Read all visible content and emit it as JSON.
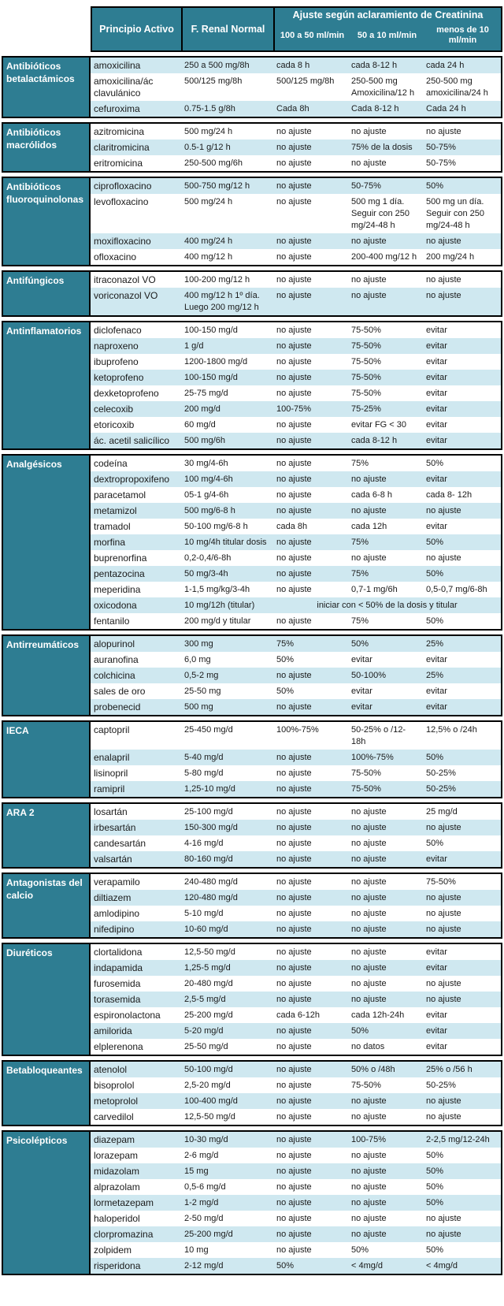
{
  "colors": {
    "teal": "#2E7D92",
    "row_alt": "#CFE8F0",
    "row_white": "#FFFFFF",
    "border": "#000000",
    "text": "#1A1A1A",
    "header_text": "#FFFFFF"
  },
  "header": {
    "col_principio": "Principio Activo",
    "col_frenal": "F. Renal Normal",
    "span_title": "Ajuste según aclaramiento de Creatinina",
    "sub1": "100 a 50 ml/min",
    "sub2": "50 a 10 ml/min",
    "sub3": "menos de 10 ml/min"
  },
  "groups": [
    {
      "label": "Antibióticos betalactámicos",
      "rows": [
        {
          "drug": "amoxicilina",
          "normal": "250 a 500 mg/8h",
          "c1": "cada 8 h",
          "c2": "cada 8-12 h",
          "c3": "cada 24 h",
          "shade": true
        },
        {
          "drug": "amoxicilina/ác clavulánico",
          "normal": "500/125 mg/8h",
          "c1": "500/125 mg/8h",
          "c2": "250-500 mg Amoxicilina/12 h",
          "c3": "250-500 mg amoxicilina/24 h",
          "shade": false
        },
        {
          "drug": "cefuroxima",
          "normal": "0.75-1.5 g/8h",
          "c1": "Cada 8h",
          "c2": "Cada 8-12 h",
          "c3": "Cada 24 h",
          "shade": true
        }
      ]
    },
    {
      "label": "Antibióticos macrólidos",
      "rows": [
        {
          "drug": "azitromicina",
          "normal": "500 mg/24 h",
          "c1": "no ajuste",
          "c2": "no ajuste",
          "c3": "no ajuste",
          "shade": false
        },
        {
          "drug": "claritromicina",
          "normal": "0.5-1 g/12 h",
          "c1": "no ajuste",
          "c2": "75% de la dosis",
          "c3": "50-75%",
          "shade": true
        },
        {
          "drug": "eritromicina",
          "normal": "250-500 mg/6h",
          "c1": "no ajuste",
          "c2": "no ajuste",
          "c3": "50-75%",
          "shade": false
        }
      ]
    },
    {
      "label": "Antibióticos fluoroquinolonas",
      "rows": [
        {
          "drug": "ciprofloxacino",
          "normal": "500-750 mg/12 h",
          "c1": "no ajuste",
          "c2": "50-75%",
          "c3": "50%",
          "shade": true
        },
        {
          "drug": "levofloxacino",
          "normal": "500 mg/24 h",
          "c1": "no ajuste",
          "c2": "500 mg 1 día. Seguir con 250 mg/24-48 h",
          "c3": "500 mg un día. Seguir con 250 mg/24-48 h",
          "shade": false
        },
        {
          "drug": "moxifloxacino",
          "normal": "400 mg/24 h",
          "c1": "no ajuste",
          "c2": "no ajuste",
          "c3": "no ajuste",
          "shade": true
        },
        {
          "drug": "ofloxacino",
          "normal": "400 mg/12 h",
          "c1": "no ajuste",
          "c2": "200-400 mg/12 h",
          "c3": "200 mg/24 h",
          "shade": false
        }
      ]
    },
    {
      "label": "Antifúngicos",
      "rows": [
        {
          "drug": "itraconazol VO",
          "normal": "100-200 mg/12 h",
          "c1": "no ajuste",
          "c2": "no ajuste",
          "c3": "no ajuste",
          "shade": false
        },
        {
          "drug": "voriconazol VO",
          "normal": "400 mg/12 h 1º día. Luego 200 mg/12 h",
          "c1": "no ajuste",
          "c2": "no ajuste",
          "c3": "no ajuste",
          "shade": true
        }
      ]
    },
    {
      "label": "Antinflamatorios",
      "rows": [
        {
          "drug": "diclofenaco",
          "normal": "100-150 mg/d",
          "c1": "no ajuste",
          "c2": "75-50%",
          "c3": "evitar",
          "shade": false
        },
        {
          "drug": "naproxeno",
          "normal": "1 g/d",
          "c1": "no ajuste",
          "c2": "75-50%",
          "c3": "evitar",
          "shade": true
        },
        {
          "drug": "ibuprofeno",
          "normal": "1200-1800 mg/d",
          "c1": "no ajuste",
          "c2": "75-50%",
          "c3": "evitar",
          "shade": false
        },
        {
          "drug": "ketoprofeno",
          "normal": "100-150 mg/d",
          "c1": "no ajuste",
          "c2": "75-50%",
          "c3": "evitar",
          "shade": true
        },
        {
          "drug": "dexketoprofeno",
          "normal": "25-75 mg/d",
          "c1": "no ajuste",
          "c2": "75-50%",
          "c3": "evitar",
          "shade": false
        },
        {
          "drug": "celecoxib",
          "normal": "200 mg/d",
          "c1": "100-75%",
          "c2": "75-25%",
          "c3": "evitar",
          "shade": true
        },
        {
          "drug": "etoricoxib",
          "normal": "60 mg/d",
          "c1": "no ajuste",
          "c2": "evitar FG < 30",
          "c3": "evitar",
          "shade": false
        },
        {
          "drug": "ác. acetil salicílico",
          "normal": "500 mg/6h",
          "c1": "no ajuste",
          "c2": "cada 8-12 h",
          "c3": "evitar",
          "shade": true
        }
      ]
    },
    {
      "label": "Analgésicos",
      "rows": [
        {
          "drug": "codeína",
          "normal": "30 mg/4-6h",
          "c1": "no ajuste",
          "c2": "75%",
          "c3": "50%",
          "shade": false
        },
        {
          "drug": "dextropropoxifeno",
          "normal": "100 mg/4-6h",
          "c1": "no ajuste",
          "c2": "no ajuste",
          "c3": "evitar",
          "shade": true
        },
        {
          "drug": "paracetamol",
          "normal": "05-1 g/4-6h",
          "c1": "no ajuste",
          "c2": "cada 6-8 h",
          "c3": "cada 8- 12h",
          "shade": false
        },
        {
          "drug": "metamizol",
          "normal": "500 mg/6-8 h",
          "c1": "no ajuste",
          "c2": "no ajuste",
          "c3": "no ajuste",
          "shade": true
        },
        {
          "drug": "tramadol",
          "normal": "50-100 mg/6-8 h",
          "c1": "cada 8h",
          "c2": "cada 12h",
          "c3": "evitar",
          "shade": false
        },
        {
          "drug": "morfina",
          "normal": "10 mg/4h titular dosis",
          "c1": "no ajuste",
          "c2": "75%",
          "c3": "50%",
          "shade": true
        },
        {
          "drug": "buprenorfina",
          "normal": "0,2-0,4/6-8h",
          "c1": "no ajuste",
          "c2": "no ajuste",
          "c3": "no ajuste",
          "shade": false
        },
        {
          "drug": "pentazocina",
          "normal": "50 mg/3-4h",
          "c1": "no ajuste",
          "c2": "75%",
          "c3": "50%",
          "shade": true
        },
        {
          "drug": "meperidina",
          "normal": "1-1,5 mg/kg/3-4h",
          "c1": "no ajuste",
          "c2": "0,7-1 mg/6h",
          "c3": "0,5-0,7 mg/6-8h",
          "shade": false
        },
        {
          "drug": "oxicodona",
          "normal": "10 mg/12h (titular)",
          "merged": "iniciar con < 50% de la dosis y titular",
          "shade": true
        },
        {
          "drug": "fentanilo",
          "normal": "200 mg/d y titular",
          "c1": "no ajuste",
          "c2": "75%",
          "c3": "50%",
          "shade": false
        }
      ]
    },
    {
      "label": "Antirreumáticos",
      "rows": [
        {
          "drug": "alopurinol",
          "normal": "300 mg",
          "c1": "75%",
          "c2": "50%",
          "c3": "25%",
          "shade": true
        },
        {
          "drug": "auranofina",
          "normal": "6,0 mg",
          "c1": "50%",
          "c2": "evitar",
          "c3": "evitar",
          "shade": false
        },
        {
          "drug": "colchicina",
          "normal": "0,5-2 mg",
          "c1": "no ajuste",
          "c2": "50-100%",
          "c3": "25%",
          "shade": true
        },
        {
          "drug": "sales de oro",
          "normal": "25-50 mg",
          "c1": "50%",
          "c2": "evitar",
          "c3": "evitar",
          "shade": false
        },
        {
          "drug": "probenecid",
          "normal": "500 mg",
          "c1": "no ajuste",
          "c2": "evitar",
          "c3": "evitar",
          "shade": true
        }
      ]
    },
    {
      "label": "IECA",
      "rows": [
        {
          "drug": "captopril",
          "normal": "25-450 mg/d",
          "c1": "100%-75%",
          "c2": "50-25% o /12-18h",
          "c3": "12,5% o /24h",
          "shade": false
        },
        {
          "drug": "enalapril",
          "normal": "5-40 mg/d",
          "c1": "no ajuste",
          "c2": "100%-75%",
          "c3": "50%",
          "shade": true
        },
        {
          "drug": "lisinopril",
          "normal": "5-80 mg/d",
          "c1": "no ajuste",
          "c2": "75-50%",
          "c3": "50-25%",
          "shade": false
        },
        {
          "drug": "ramipril",
          "normal": "1,25-10 mg/d",
          "c1": "no ajuste",
          "c2": "75-50%",
          "c3": "50-25%",
          "shade": true
        }
      ]
    },
    {
      "label": "ARA 2",
      "rows": [
        {
          "drug": "losartán",
          "normal": "25-100 mg/d",
          "c1": "no ajuste",
          "c2": "no ajuste",
          "c3": "25 mg/d",
          "shade": false
        },
        {
          "drug": "irbesartán",
          "normal": "150-300 mg/d",
          "c1": "no ajuste",
          "c2": "no ajuste",
          "c3": "no ajuste",
          "shade": true
        },
        {
          "drug": "candesartán",
          "normal": "4-16 mg/d",
          "c1": "no ajuste",
          "c2": "no ajuste",
          "c3": "50%",
          "shade": false
        },
        {
          "drug": "valsartán",
          "normal": "80-160 mg/d",
          "c1": "no ajuste",
          "c2": "no ajuste",
          "c3": "evitar",
          "shade": true
        }
      ]
    },
    {
      "label": "Antagonistas del calcio",
      "rows": [
        {
          "drug": "verapamilo",
          "normal": "240-480 mg/d",
          "c1": "no ajuste",
          "c2": "no ajuste",
          "c3": "75-50%",
          "shade": false
        },
        {
          "drug": "diltiazem",
          "normal": "120-480 mg/d",
          "c1": "no ajuste",
          "c2": "no ajuste",
          "c3": "no ajuste",
          "shade": true
        },
        {
          "drug": "amlodipino",
          "normal": "5-10 mg/d",
          "c1": "no ajuste",
          "c2": "no ajuste",
          "c3": "no ajuste",
          "shade": false
        },
        {
          "drug": "nifedipino",
          "normal": "10-60 mg/d",
          "c1": "no ajuste",
          "c2": "no ajuste",
          "c3": "no ajuste",
          "shade": true
        }
      ]
    },
    {
      "label": "Diuréticos",
      "rows": [
        {
          "drug": "clortalidona",
          "normal": "12,5-50 mg/d",
          "c1": "no ajuste",
          "c2": "no ajuste",
          "c3": "evitar",
          "shade": false
        },
        {
          "drug": "indapamida",
          "normal": "1,25-5 mg/d",
          "c1": "no ajuste",
          "c2": "no ajuste",
          "c3": "evitar",
          "shade": true
        },
        {
          "drug": "furosemida",
          "normal": "20-480 mg/d",
          "c1": "no ajuste",
          "c2": "no ajuste",
          "c3": "no ajuste",
          "shade": false
        },
        {
          "drug": "torasemida",
          "normal": "2,5-5 mg/d",
          "c1": "no ajuste",
          "c2": "no ajuste",
          "c3": "no ajuste",
          "shade": true
        },
        {
          "drug": "espironolactona",
          "normal": "25-200 mg/d",
          "c1": "cada 6-12h",
          "c2": "cada 12h-24h",
          "c3": "evitar",
          "shade": false
        },
        {
          "drug": "amilorida",
          "normal": "5-20 mg/d",
          "c1": "no ajuste",
          "c2": "50%",
          "c3": "evitar",
          "shade": true
        },
        {
          "drug": "elplerenona",
          "normal": "25-50 mg/d",
          "c1": "no ajuste",
          "c2": "no datos",
          "c3": "evitar",
          "shade": false
        }
      ]
    },
    {
      "label": "Betabloqueantes",
      "rows": [
        {
          "drug": "atenolol",
          "normal": "50-100 mg/d",
          "c1": "no ajuste",
          "c2": "50% o /48h",
          "c3": "25% o /56 h",
          "shade": true
        },
        {
          "drug": "bisoprolol",
          "normal": "2,5-20 mg/d",
          "c1": "no ajuste",
          "c2": "75-50%",
          "c3": "50-25%",
          "shade": false
        },
        {
          "drug": "metoprolol",
          "normal": "100-400 mg/d",
          "c1": "no ajuste",
          "c2": "no ajuste",
          "c3": "no ajuste",
          "shade": true
        },
        {
          "drug": "carvedilol",
          "normal": "12,5-50 mg/d",
          "c1": "no ajuste",
          "c2": "no ajuste",
          "c3": "no ajuste",
          "shade": false
        }
      ]
    },
    {
      "label": "Psicolépticos",
      "rows": [
        {
          "drug": "diazepam",
          "normal": "10-30 mg/d",
          "c1": "no ajuste",
          "c2": "100-75%",
          "c3": "2-2,5 mg/12-24h",
          "shade": true
        },
        {
          "drug": "lorazepam",
          "normal": "2-6 mg/d",
          "c1": "no ajuste",
          "c2": "no ajuste",
          "c3": "50%",
          "shade": false
        },
        {
          "drug": "midazolam",
          "normal": "15 mg",
          "c1": "no ajuste",
          "c2": "no ajuste",
          "c3": "50%",
          "shade": true
        },
        {
          "drug": "alprazolam",
          "normal": "0,5-6 mg/d",
          "c1": "no ajuste",
          "c2": "no ajuste",
          "c3": "50%",
          "shade": false
        },
        {
          "drug": "lormetazepam",
          "normal": "1-2 mg/d",
          "c1": "no ajuste",
          "c2": "no ajuste",
          "c3": "50%",
          "shade": true
        },
        {
          "drug": "haloperidol",
          "normal": "2-50 mg/d",
          "c1": "no ajuste",
          "c2": "no ajuste",
          "c3": "no ajuste",
          "shade": false
        },
        {
          "drug": "clorpromazina",
          "normal": "25-200 mg/d",
          "c1": "no ajuste",
          "c2": "no ajuste",
          "c3": "no ajuste",
          "shade": true
        },
        {
          "drug": "zolpidem",
          "normal": "10 mg",
          "c1": "no ajuste",
          "c2": "50%",
          "c3": "50%",
          "shade": false
        },
        {
          "drug": "risperidona",
          "normal": "2-12 mg/d",
          "c1": "50%",
          "c2": "< 4mg/d",
          "c3": "< 4mg/d",
          "shade": true
        }
      ]
    }
  ]
}
